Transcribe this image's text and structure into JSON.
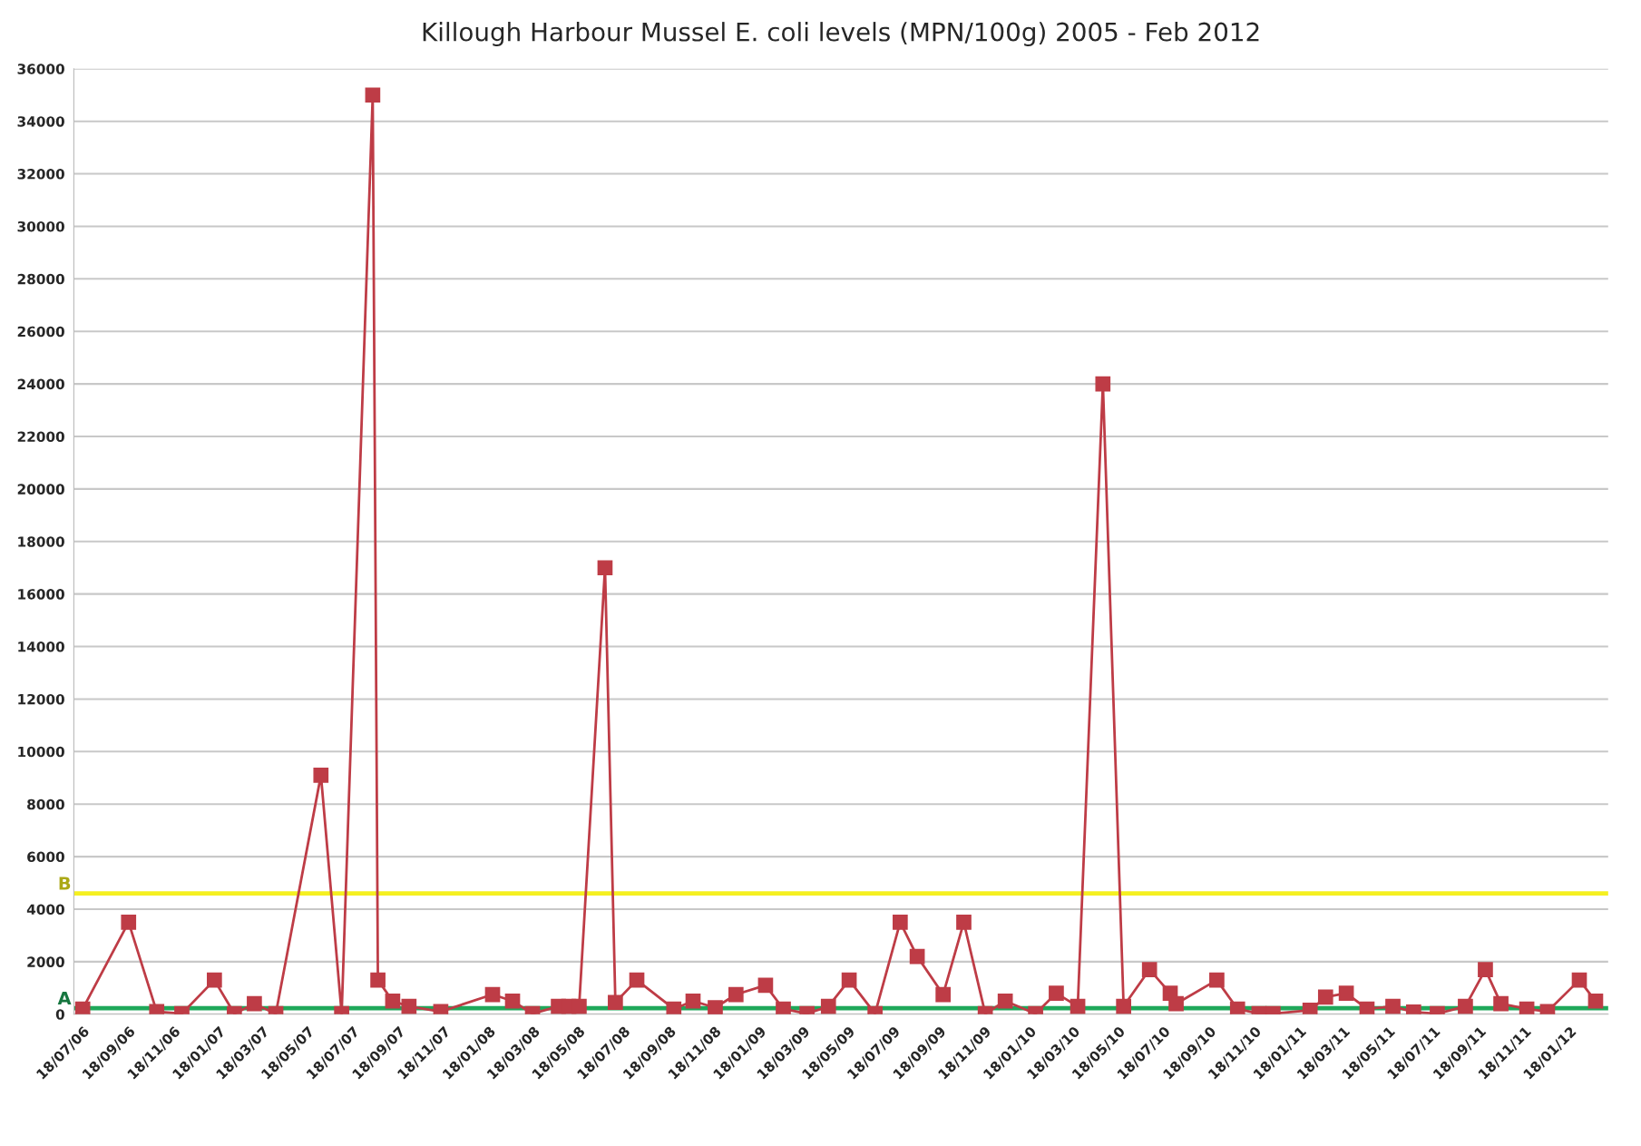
{
  "chart_data": {
    "type": "line",
    "title": "Killough Harbour Mussel E. coli levels (MPN/100g) 2005 - Feb 2012",
    "x": [
      "2006-07-18",
      "2006-09-18",
      "2006-10-26",
      "2006-11-29",
      "2007-01-12",
      "2007-02-08",
      "2007-03-07",
      "2007-04-05",
      "2007-06-05",
      "2007-07-03",
      "2007-08-14",
      "2007-08-21",
      "2007-09-10",
      "2007-10-02",
      "2007-11-14",
      "2008-01-23",
      "2008-02-19",
      "2008-03-17",
      "2008-04-21",
      "2008-05-05",
      "2008-05-19",
      "2008-06-23",
      "2008-07-07",
      "2008-08-05",
      "2008-09-24",
      "2008-10-20",
      "2008-11-19",
      "2008-12-17",
      "2009-01-26",
      "2009-02-19",
      "2009-03-23",
      "2009-04-21",
      "2009-05-19",
      "2009-06-23",
      "2009-07-27",
      "2009-08-19",
      "2009-09-23",
      "2009-10-21",
      "2009-11-19",
      "2009-12-16",
      "2010-01-26",
      "2010-02-23",
      "2010-03-24",
      "2010-04-27",
      "2010-05-25",
      "2010-06-29",
      "2010-07-27",
      "2010-08-04",
      "2010-09-28",
      "2010-10-26",
      "2010-11-24",
      "2010-12-13",
      "2011-02-01",
      "2011-02-22",
      "2011-03-22",
      "2011-04-19",
      "2011-05-24",
      "2011-06-21",
      "2011-07-23",
      "2011-08-30",
      "2011-09-26",
      "2011-10-17",
      "2011-11-21",
      "2011-12-19",
      "2012-01-31",
      "2012-02-22"
    ],
    "series": [
      {
        "color": "#be3c46",
        "values": [
          200,
          3500,
          100,
          20,
          1300,
          20,
          400,
          20,
          9100,
          20,
          35000,
          1300,
          500,
          300,
          100,
          750,
          500,
          20,
          300,
          300,
          300,
          17000,
          450,
          1300,
          200,
          500,
          250,
          750,
          1100,
          200,
          20,
          300,
          1300,
          20,
          3500,
          2200,
          750,
          3500,
          20,
          500,
          20,
          800,
          300,
          24000,
          300,
          1700,
          800,
          400,
          1300,
          200,
          20,
          20,
          150,
          650,
          800,
          200,
          300,
          80,
          20,
          300,
          1700,
          400,
          200,
          100,
          1300,
          500
        ]
      }
    ],
    "marker": "square",
    "line_style": "solid",
    "xlim": [
      "2006-07-06",
      "2012-03-10"
    ],
    "xticks": [
      {
        "value": "2006-07-18",
        "label": "18/07/06"
      },
      {
        "value": "2006-09-18",
        "label": "18/09/06"
      },
      {
        "value": "2006-11-18",
        "label": "18/11/06"
      },
      {
        "value": "2007-01-18",
        "label": "18/01/07"
      },
      {
        "value": "2007-03-18",
        "label": "18/03/07"
      },
      {
        "value": "2007-05-18",
        "label": "18/05/07"
      },
      {
        "value": "2007-07-18",
        "label": "18/07/07"
      },
      {
        "value": "2007-09-18",
        "label": "18/09/07"
      },
      {
        "value": "2007-11-18",
        "label": "18/11/07"
      },
      {
        "value": "2008-01-18",
        "label": "18/01/08"
      },
      {
        "value": "2008-03-18",
        "label": "18/03/08"
      },
      {
        "value": "2008-05-18",
        "label": "18/05/08"
      },
      {
        "value": "2008-07-18",
        "label": "18/07/08"
      },
      {
        "value": "2008-09-18",
        "label": "18/09/08"
      },
      {
        "value": "2008-11-18",
        "label": "18/11/08"
      },
      {
        "value": "2009-01-18",
        "label": "18/01/09"
      },
      {
        "value": "2009-03-18",
        "label": "18/03/09"
      },
      {
        "value": "2009-05-18",
        "label": "18/05/09"
      },
      {
        "value": "2009-07-18",
        "label": "18/07/09"
      },
      {
        "value": "2009-09-18",
        "label": "18/09/09"
      },
      {
        "value": "2009-11-18",
        "label": "18/11/09"
      },
      {
        "value": "2010-01-18",
        "label": "18/01/10"
      },
      {
        "value": "2010-03-18",
        "label": "18/03/10"
      },
      {
        "value": "2010-05-18",
        "label": "18/05/10"
      },
      {
        "value": "2010-07-18",
        "label": "18/07/10"
      },
      {
        "value": "2010-09-18",
        "label": "18/09/10"
      },
      {
        "value": "2010-11-18",
        "label": "18/11/10"
      },
      {
        "value": "2011-01-18",
        "label": "18/01/11"
      },
      {
        "value": "2011-03-18",
        "label": "18/03/11"
      },
      {
        "value": "2011-05-18",
        "label": "18/05/11"
      },
      {
        "value": "2011-07-18",
        "label": "18/07/11"
      },
      {
        "value": "2011-09-18",
        "label": "18/09/11"
      },
      {
        "value": "2011-11-18",
        "label": "18/11/11"
      },
      {
        "value": "2012-01-18",
        "label": "18/01/12"
      }
    ],
    "ylim": [
      0,
      36000
    ],
    "yticks": [
      0,
      2000,
      4000,
      6000,
      8000,
      10000,
      12000,
      14000,
      16000,
      18000,
      20000,
      22000,
      24000,
      26000,
      28000,
      30000,
      32000,
      34000,
      36000
    ],
    "grid": "y",
    "ref_lines": [
      {
        "axis": "y",
        "value": 4600,
        "label": "B",
        "color": "#f5f020"
      },
      {
        "axis": "y",
        "value": 230,
        "label": "A",
        "color": "#1fa85a"
      }
    ]
  }
}
